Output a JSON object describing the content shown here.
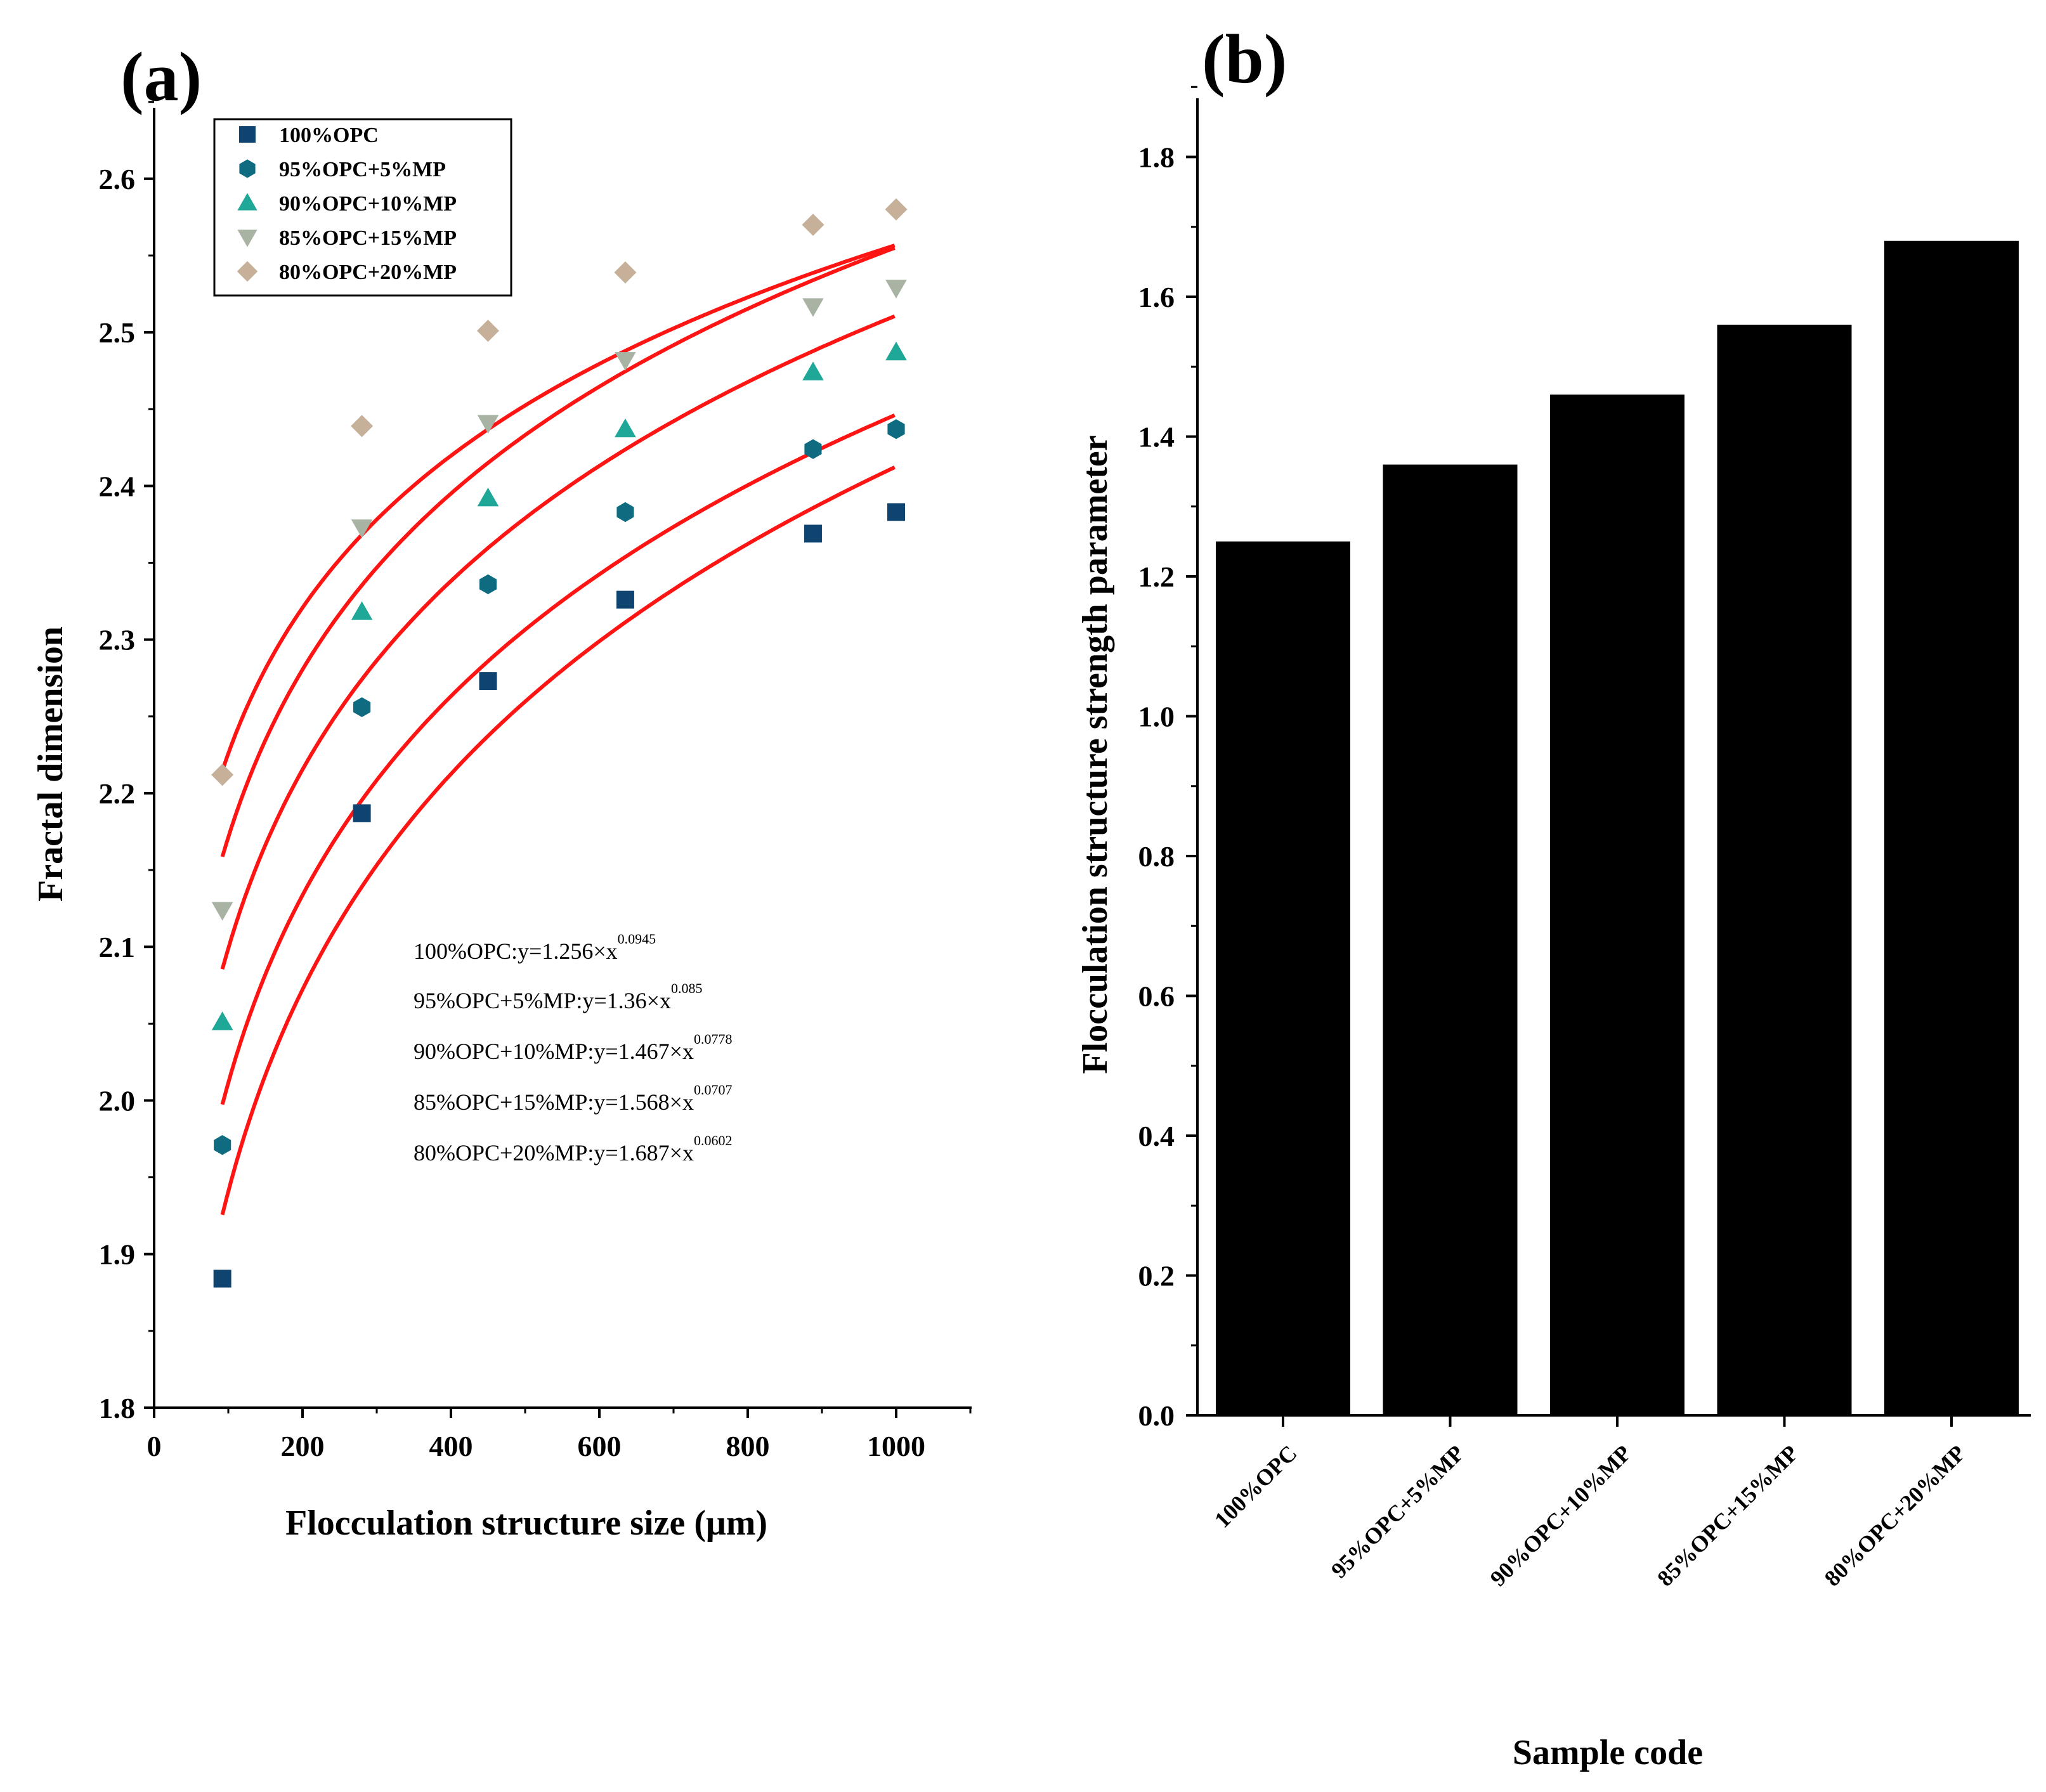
{
  "colors": {
    "fit_line": "#ff1414",
    "bar": "#000000",
    "series_opc100": "#0f4470",
    "series_mp5": "#0e6b80",
    "series_mp10": "#1fa898",
    "series_mp15": "#a8b3a4",
    "series_mp20": "#c6b09a"
  },
  "chart_data": [
    {
      "type": "scatter",
      "panel_label": "(a)",
      "xlabel": "Flocculation structure size (μm)",
      "ylabel": "Fractal dimension",
      "xlim": [
        0,
        1100
      ],
      "ylim": [
        1.8,
        2.65
      ],
      "xticks": [
        0,
        200,
        400,
        600,
        800,
        1000
      ],
      "xtick_labels": [
        "0",
        "200",
        "400",
        "600",
        "800",
        "1000"
      ],
      "yticks": [
        1.8,
        1.9,
        2.0,
        2.1,
        2.2,
        2.3,
        2.4,
        2.5,
        2.6
      ],
      "ytick_labels": [
        "1.8",
        "1.9",
        "2.0",
        "2.1",
        "2.2",
        "2.3",
        "2.4",
        "2.5",
        "2.6"
      ],
      "legend_position": "top-left",
      "fit_x_range": [
        92,
        1000
      ],
      "x": [
        92,
        280,
        450,
        635,
        888,
        1000
      ],
      "series": [
        {
          "name": "100%OPC",
          "legend_label": "100%OPC",
          "marker": "square",
          "color_key": "series_opc100",
          "values": [
            1.884,
            2.187,
            2.273,
            2.326,
            2.369,
            2.383
          ],
          "fit": {
            "a": 1.256,
            "b": 0.0945
          }
        },
        {
          "name": "95%OPC+5%MP",
          "legend_label": "95%OPC+5%MP",
          "marker": "hexagon",
          "color_key": "series_mp5",
          "values": [
            1.971,
            2.256,
            2.336,
            2.383,
            2.424,
            2.437
          ],
          "fit": {
            "a": 1.36,
            "b": 0.085
          }
        },
        {
          "name": "90%OPC+10%MP",
          "legend_label": "90%OPC+10%MP",
          "marker": "triangle-up",
          "color_key": "series_mp10",
          "values": [
            2.051,
            2.318,
            2.392,
            2.437,
            2.474,
            2.487
          ],
          "fit": {
            "a": 1.467,
            "b": 0.0778
          }
        },
        {
          "name": "85%OPC+15%MP",
          "legend_label": "85%OPC+15%MP",
          "marker": "triangle-down",
          "color_key": "series_mp15",
          "values": [
            2.124,
            2.373,
            2.441,
            2.482,
            2.517,
            2.529
          ],
          "fit": {
            "a": 1.568,
            "b": 0.0707
          }
        },
        {
          "name": "80%OPC+20%MP",
          "legend_label": "80%OPC+20%MP",
          "marker": "diamond",
          "color_key": "series_mp20",
          "values": [
            2.212,
            2.439,
            2.501,
            2.539,
            2.57,
            2.58
          ],
          "fit": {
            "a": 1.687,
            "b": 0.0602
          }
        }
      ],
      "equations": [
        {
          "prefix": "100%OPC:y=1.256×x",
          "exponent": "0.0945"
        },
        {
          "prefix": "95%OPC+5%MP:y=1.36×x",
          "exponent": "0.085"
        },
        {
          "prefix": "90%OPC+10%MP:y=1.467×x",
          "exponent": "0.0778"
        },
        {
          "prefix": "85%OPC+15%MP:y=1.568×x",
          "exponent": "0.0707"
        },
        {
          "prefix": "80%OPC+20%MP:y=1.687×x",
          "exponent": "0.0602"
        }
      ]
    },
    {
      "type": "bar",
      "panel_label": "(b)",
      "xlabel": "Sample code",
      "ylabel": "Flocculation structure strength parameter",
      "categories": [
        "100%OPC",
        "95%OPC+5%MP",
        "90%OPC+10%MP",
        "85%OPC+15%MP",
        "80%OPC+20%MP"
      ],
      "values": [
        1.25,
        1.36,
        1.46,
        1.56,
        1.68
      ],
      "ylim": [
        0,
        1.9
      ],
      "yticks": [
        0,
        0.2,
        0.4,
        0.6,
        0.8,
        1.0,
        1.2,
        1.4,
        1.6,
        1.8
      ],
      "ytick_labels": [
        "0.0",
        "0.2",
        "0.4",
        "0.6",
        "0.8",
        "1.0",
        "1.2",
        "1.4",
        "1.6",
        "1.8"
      ]
    }
  ]
}
